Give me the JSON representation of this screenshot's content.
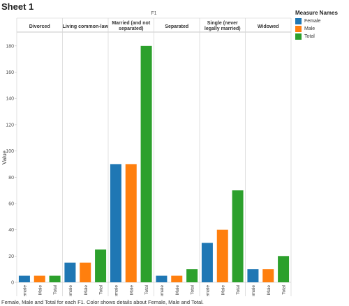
{
  "sheet_title": "Sheet 1",
  "caption": "Female, Male  and Total for each F1.  Color shows details about Female, Male  and Total.",
  "legend": {
    "title": "Measure Names",
    "items": [
      {
        "label": "Female",
        "color": "#1f77b4"
      },
      {
        "label": "Male",
        "color": "#ff7f0e"
      },
      {
        "label": "Total",
        "color": "#2ca02c"
      }
    ]
  },
  "chart_data": {
    "type": "bar",
    "column_header": "F1",
    "ylabel": "Value",
    "ylim": [
      0,
      190
    ],
    "yticks": [
      0,
      20,
      40,
      60,
      80,
      100,
      120,
      140,
      160,
      180
    ],
    "measures": [
      "Female",
      "Male",
      "Total"
    ],
    "colors": [
      "#1f77b4",
      "#ff7f0e",
      "#2ca02c"
    ],
    "panes": [
      {
        "label": [
          "Divorced"
        ],
        "values": [
          5,
          5,
          5
        ]
      },
      {
        "label": [
          "Living common-law"
        ],
        "values": [
          15,
          15,
          25
        ]
      },
      {
        "label": [
          "Married (and not",
          "separated)"
        ],
        "values": [
          90,
          90,
          180
        ]
      },
      {
        "label": [
          "Separated"
        ],
        "values": [
          5,
          5,
          10
        ]
      },
      {
        "label": [
          "Single (never",
          "legally married)"
        ],
        "values": [
          30,
          40,
          70
        ]
      },
      {
        "label": [
          "Widowed"
        ],
        "values": [
          10,
          10,
          20
        ]
      }
    ]
  }
}
